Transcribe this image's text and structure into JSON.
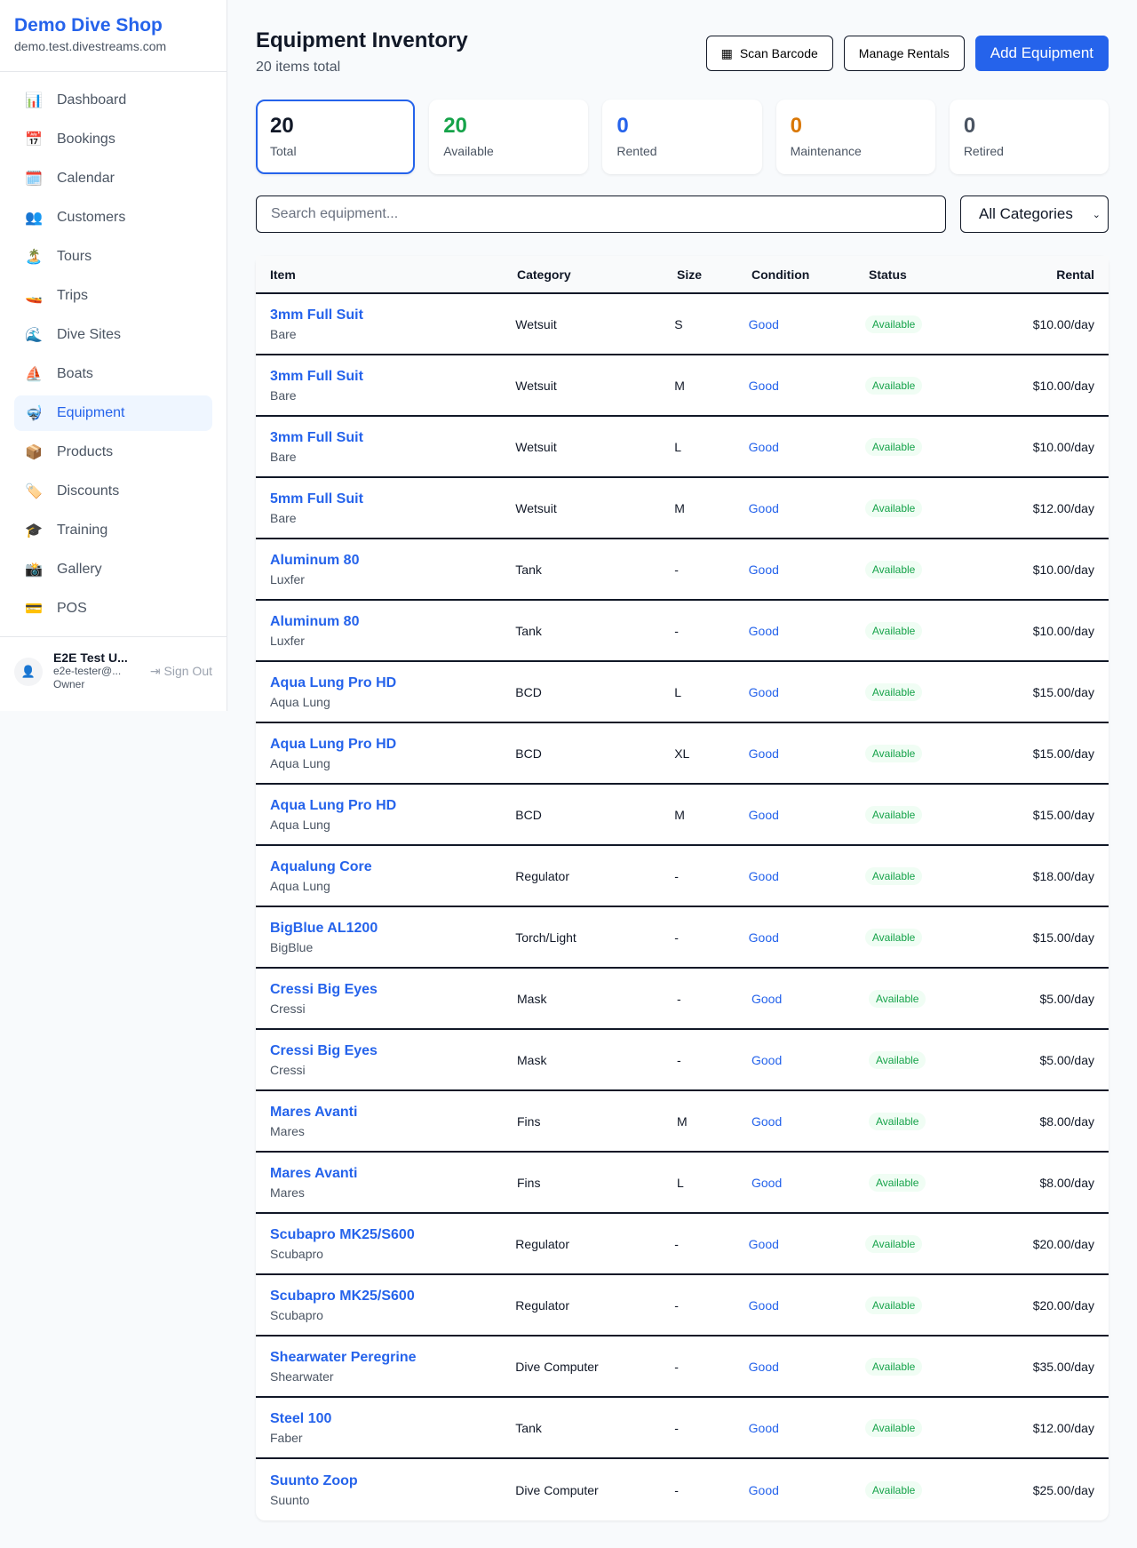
{
  "sidebar": {
    "shop_name": "Demo Dive Shop",
    "domain": "demo.test.divestreams.com",
    "items": [
      {
        "label": "Dashboard",
        "icon": "📊"
      },
      {
        "label": "Bookings",
        "icon": "📅"
      },
      {
        "label": "Calendar",
        "icon": "🗓️"
      },
      {
        "label": "Customers",
        "icon": "👥"
      },
      {
        "label": "Tours",
        "icon": "🏝️"
      },
      {
        "label": "Trips",
        "icon": "🚤"
      },
      {
        "label": "Dive Sites",
        "icon": "🌊"
      },
      {
        "label": "Boats",
        "icon": "⛵"
      },
      {
        "label": "Equipment",
        "icon": "🤿"
      },
      {
        "label": "Products",
        "icon": "📦"
      },
      {
        "label": "Discounts",
        "icon": "🏷️"
      },
      {
        "label": "Training",
        "icon": "🎓"
      },
      {
        "label": "Gallery",
        "icon": "📸"
      },
      {
        "label": "POS",
        "icon": "💳"
      }
    ],
    "active": "Equipment",
    "user": {
      "name": "E2E Test U...",
      "email": "e2e-tester@...",
      "role": "Owner",
      "sign_out": "Sign Out"
    }
  },
  "header": {
    "title": "Equipment Inventory",
    "subtitle": "20 items total",
    "scan_barcode": "Scan Barcode",
    "manage_rentals": "Manage Rentals",
    "add_equipment": "Add Equipment"
  },
  "stats": [
    {
      "value": "20",
      "label": "Total",
      "color": "#111827"
    },
    {
      "value": "20",
      "label": "Available",
      "color": "#16a34a"
    },
    {
      "value": "0",
      "label": "Rented",
      "color": "#2563eb"
    },
    {
      "value": "0",
      "label": "Maintenance",
      "color": "#d97706"
    },
    {
      "value": "0",
      "label": "Retired",
      "color": "#4b5563"
    }
  ],
  "filters": {
    "search_placeholder": "Search equipment...",
    "category": "All Categories"
  },
  "table": {
    "headers": [
      "Item",
      "Category",
      "Size",
      "Condition",
      "Status",
      "Rental"
    ],
    "rows": [
      {
        "name": "3mm Full Suit",
        "brand": "Bare",
        "category": "Wetsuit",
        "size": "S",
        "condition": "Good",
        "status": "Available",
        "rental": "$10.00/day"
      },
      {
        "name": "3mm Full Suit",
        "brand": "Bare",
        "category": "Wetsuit",
        "size": "M",
        "condition": "Good",
        "status": "Available",
        "rental": "$10.00/day"
      },
      {
        "name": "3mm Full Suit",
        "brand": "Bare",
        "category": "Wetsuit",
        "size": "L",
        "condition": "Good",
        "status": "Available",
        "rental": "$10.00/day"
      },
      {
        "name": "5mm Full Suit",
        "brand": "Bare",
        "category": "Wetsuit",
        "size": "M",
        "condition": "Good",
        "status": "Available",
        "rental": "$12.00/day"
      },
      {
        "name": "Aluminum 80",
        "brand": "Luxfer",
        "category": "Tank",
        "size": "-",
        "condition": "Good",
        "status": "Available",
        "rental": "$10.00/day"
      },
      {
        "name": "Aluminum 80",
        "brand": "Luxfer",
        "category": "Tank",
        "size": "-",
        "condition": "Good",
        "status": "Available",
        "rental": "$10.00/day"
      },
      {
        "name": "Aqua Lung Pro HD",
        "brand": "Aqua Lung",
        "category": "BCD",
        "size": "L",
        "condition": "Good",
        "status": "Available",
        "rental": "$15.00/day"
      },
      {
        "name": "Aqua Lung Pro HD",
        "brand": "Aqua Lung",
        "category": "BCD",
        "size": "XL",
        "condition": "Good",
        "status": "Available",
        "rental": "$15.00/day"
      },
      {
        "name": "Aqua Lung Pro HD",
        "brand": "Aqua Lung",
        "category": "BCD",
        "size": "M",
        "condition": "Good",
        "status": "Available",
        "rental": "$15.00/day"
      },
      {
        "name": "Aqualung Core",
        "brand": "Aqua Lung",
        "category": "Regulator",
        "size": "-",
        "condition": "Good",
        "status": "Available",
        "rental": "$18.00/day"
      },
      {
        "name": "BigBlue AL1200",
        "brand": "BigBlue",
        "category": "Torch/Light",
        "size": "-",
        "condition": "Good",
        "status": "Available",
        "rental": "$15.00/day"
      },
      {
        "name": "Cressi Big Eyes",
        "brand": "Cressi",
        "category": "Mask",
        "size": "-",
        "condition": "Good",
        "status": "Available",
        "rental": "$5.00/day"
      },
      {
        "name": "Cressi Big Eyes",
        "brand": "Cressi",
        "category": "Mask",
        "size": "-",
        "condition": "Good",
        "status": "Available",
        "rental": "$5.00/day"
      },
      {
        "name": "Mares Avanti",
        "brand": "Mares",
        "category": "Fins",
        "size": "M",
        "condition": "Good",
        "status": "Available",
        "rental": "$8.00/day"
      },
      {
        "name": "Mares Avanti",
        "brand": "Mares",
        "category": "Fins",
        "size": "L",
        "condition": "Good",
        "status": "Available",
        "rental": "$8.00/day"
      },
      {
        "name": "Scubapro MK25/S600",
        "brand": "Scubapro",
        "category": "Regulator",
        "size": "-",
        "condition": "Good",
        "status": "Available",
        "rental": "$20.00/day"
      },
      {
        "name": "Scubapro MK25/S600",
        "brand": "Scubapro",
        "category": "Regulator",
        "size": "-",
        "condition": "Good",
        "status": "Available",
        "rental": "$20.00/day"
      },
      {
        "name": "Shearwater Peregrine",
        "brand": "Shearwater",
        "category": "Dive Computer",
        "size": "-",
        "condition": "Good",
        "status": "Available",
        "rental": "$35.00/day"
      },
      {
        "name": "Steel 100",
        "brand": "Faber",
        "category": "Tank",
        "size": "-",
        "condition": "Good",
        "status": "Available",
        "rental": "$12.00/day"
      },
      {
        "name": "Suunto Zoop",
        "brand": "Suunto",
        "category": "Dive Computer",
        "size": "-",
        "condition": "Good",
        "status": "Available",
        "rental": "$25.00/day"
      }
    ]
  }
}
